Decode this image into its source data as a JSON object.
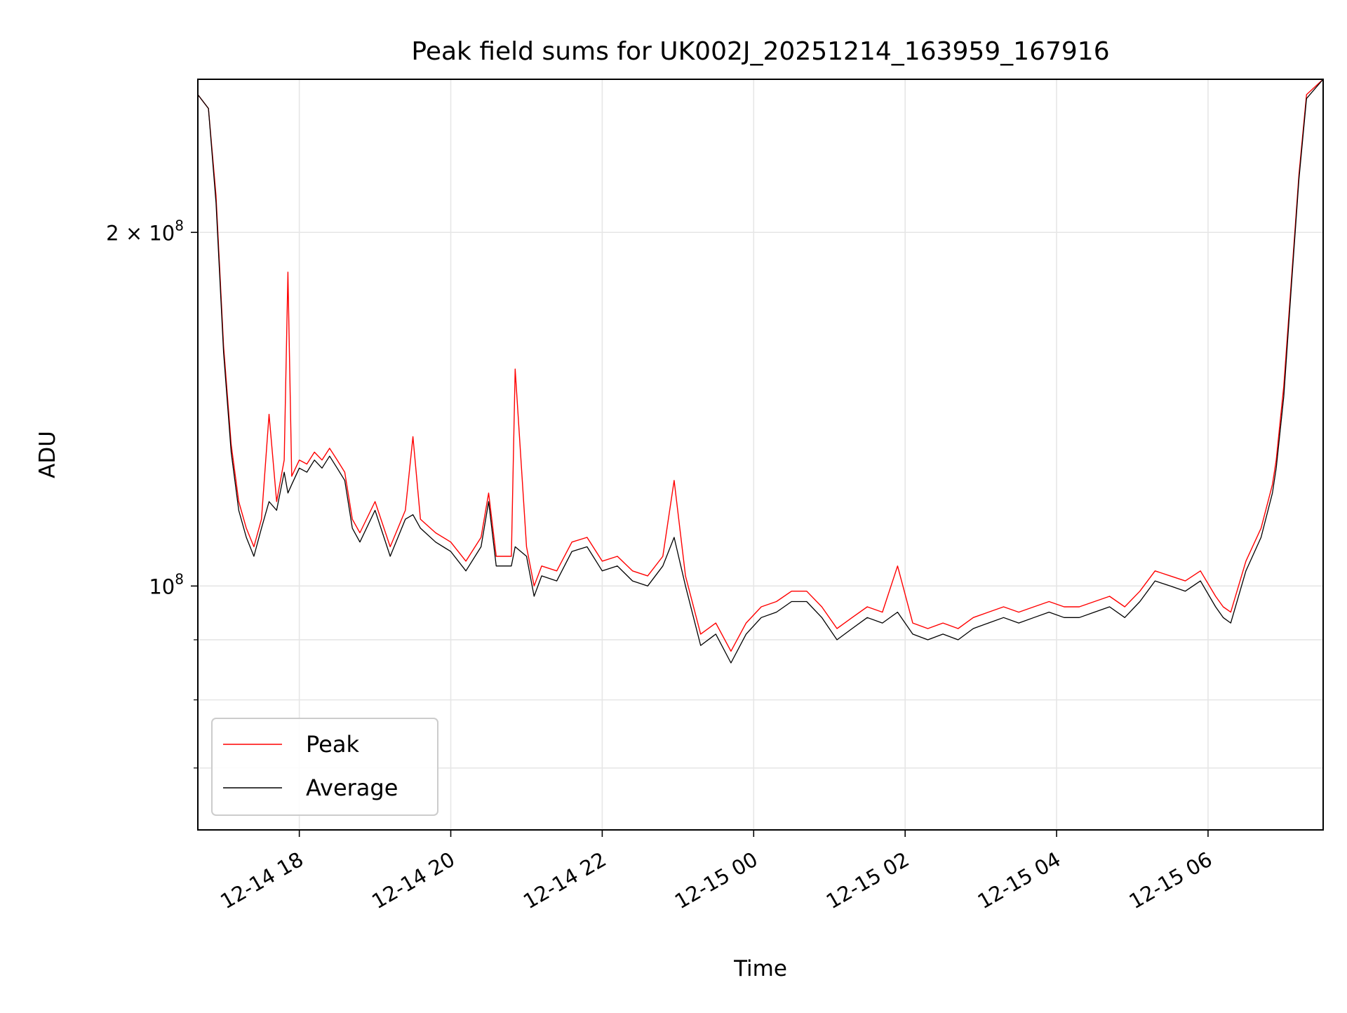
{
  "chart_data": {
    "type": "line",
    "title": "Peak field sums for UK002J_20251214_163959_167916",
    "xlabel": "Time",
    "ylabel": "ADU",
    "y_scale": "log",
    "ylim": [
      62000000,
      270000000
    ],
    "xlim_hours": [
      16.66,
      31.52
    ],
    "grid": true,
    "legend_position": "lower-left",
    "x_ticks": [
      {
        "label": "12-14 18",
        "hour": 18
      },
      {
        "label": "12-14 20",
        "hour": 20
      },
      {
        "label": "12-14 22",
        "hour": 22
      },
      {
        "label": "12-15 00",
        "hour": 24
      },
      {
        "label": "12-15 02",
        "hour": 26
      },
      {
        "label": "12-15 04",
        "hour": 28
      },
      {
        "label": "12-15 06",
        "hour": 30
      }
    ],
    "y_major_ticks": [
      {
        "label_base": "10",
        "label_sup": "8",
        "value": 100000000
      },
      {
        "label_base": "2 × 10",
        "label_sup": "8",
        "value": 200000000
      }
    ],
    "y_minor_ticks": [
      70000000,
      80000000,
      90000000
    ],
    "series": [
      {
        "name": "Peak",
        "color": "#ff0000",
        "x_hours": [
          16.66,
          16.8,
          16.9,
          17.0,
          17.1,
          17.2,
          17.3,
          17.4,
          17.5,
          17.6,
          17.7,
          17.8,
          17.85,
          17.9,
          18.0,
          18.1,
          18.2,
          18.3,
          18.4,
          18.5,
          18.6,
          18.7,
          18.8,
          19.0,
          19.2,
          19.4,
          19.5,
          19.6,
          19.8,
          20.0,
          20.2,
          20.4,
          20.5,
          20.6,
          20.8,
          20.85,
          21.0,
          21.1,
          21.2,
          21.4,
          21.6,
          21.8,
          22.0,
          22.2,
          22.4,
          22.6,
          22.8,
          22.95,
          23.1,
          23.3,
          23.5,
          23.7,
          23.9,
          24.1,
          24.3,
          24.5,
          24.7,
          24.9,
          25.1,
          25.3,
          25.5,
          25.7,
          25.9,
          26.1,
          26.3,
          26.5,
          26.7,
          26.9,
          27.1,
          27.3,
          27.5,
          27.7,
          27.9,
          28.1,
          28.3,
          28.5,
          28.7,
          28.9,
          29.1,
          29.3,
          29.5,
          29.7,
          29.9,
          30.1,
          30.2,
          30.3,
          30.5,
          30.7,
          30.85,
          30.9,
          31.0,
          31.1,
          31.2,
          31.3,
          31.52
        ],
        "y": [
          262000000,
          255000000,
          215000000,
          160000000,
          132000000,
          118000000,
          112000000,
          108000000,
          114000000,
          140000000,
          118000000,
          128000000,
          185000000,
          124000000,
          128000000,
          127000000,
          130000000,
          128000000,
          131000000,
          128000000,
          125000000,
          114000000,
          111000000,
          118000000,
          108000000,
          116000000,
          134000000,
          114000000,
          111000000,
          109000000,
          105000000,
          110000000,
          120000000,
          106000000,
          106000000,
          153000000,
          108000000,
          100000000,
          104000000,
          103000000,
          109000000,
          110000000,
          105000000,
          106000000,
          103000000,
          102000000,
          106000000,
          123000000,
          102000000,
          91000000,
          93000000,
          88000000,
          93000000,
          96000000,
          97000000,
          99000000,
          99000000,
          96000000,
          92000000,
          94000000,
          96000000,
          95000000,
          104000000,
          93000000,
          92000000,
          93000000,
          92000000,
          94000000,
          95000000,
          96000000,
          95000000,
          96000000,
          97000000,
          96000000,
          96000000,
          97000000,
          98000000,
          96000000,
          99000000,
          103000000,
          102000000,
          101000000,
          103000000,
          98000000,
          96000000,
          95000000,
          105000000,
          112000000,
          122000000,
          128000000,
          148000000,
          182000000,
          224000000,
          262000000,
          270000000
        ]
      },
      {
        "name": "Average",
        "color": "#000000",
        "x_hours": [
          16.66,
          16.8,
          16.9,
          17.0,
          17.1,
          17.2,
          17.3,
          17.4,
          17.5,
          17.6,
          17.7,
          17.8,
          17.85,
          17.9,
          18.0,
          18.1,
          18.2,
          18.3,
          18.4,
          18.5,
          18.6,
          18.7,
          18.8,
          19.0,
          19.2,
          19.4,
          19.5,
          19.6,
          19.8,
          20.0,
          20.2,
          20.4,
          20.5,
          20.6,
          20.8,
          20.85,
          21.0,
          21.1,
          21.2,
          21.4,
          21.6,
          21.8,
          22.0,
          22.2,
          22.4,
          22.6,
          22.8,
          22.95,
          23.1,
          23.3,
          23.5,
          23.7,
          23.9,
          24.1,
          24.3,
          24.5,
          24.7,
          24.9,
          25.1,
          25.3,
          25.5,
          25.7,
          25.9,
          26.1,
          26.3,
          26.5,
          26.7,
          26.9,
          27.1,
          27.3,
          27.5,
          27.7,
          27.9,
          28.1,
          28.3,
          28.5,
          28.7,
          28.9,
          29.1,
          29.3,
          29.5,
          29.7,
          29.9,
          30.1,
          30.2,
          30.3,
          30.5,
          30.7,
          30.85,
          30.9,
          31.0,
          31.1,
          31.2,
          31.3,
          31.52
        ],
        "y": [
          262000000,
          255000000,
          212000000,
          158000000,
          130000000,
          116000000,
          110000000,
          106000000,
          112000000,
          118000000,
          116000000,
          125000000,
          120000000,
          122000000,
          126000000,
          125000000,
          128000000,
          126000000,
          129000000,
          126000000,
          123000000,
          112000000,
          109000000,
          116000000,
          106000000,
          114000000,
          115000000,
          112000000,
          109000000,
          107000000,
          103000000,
          108000000,
          118000000,
          104000000,
          104000000,
          108000000,
          106000000,
          98000000,
          102000000,
          101000000,
          107000000,
          108000000,
          103000000,
          104000000,
          101000000,
          100000000,
          104000000,
          110000000,
          100000000,
          89000000,
          91000000,
          86000000,
          91000000,
          94000000,
          95000000,
          97000000,
          97000000,
          94000000,
          90000000,
          92000000,
          94000000,
          93000000,
          95000000,
          91000000,
          90000000,
          91000000,
          90000000,
          92000000,
          93000000,
          94000000,
          93000000,
          94000000,
          95000000,
          94000000,
          94000000,
          95000000,
          96000000,
          94000000,
          97000000,
          101000000,
          100000000,
          99000000,
          101000000,
          96000000,
          94000000,
          93000000,
          103000000,
          110000000,
          120000000,
          126000000,
          145000000,
          180000000,
          222000000,
          260000000,
          270000000
        ]
      }
    ]
  }
}
